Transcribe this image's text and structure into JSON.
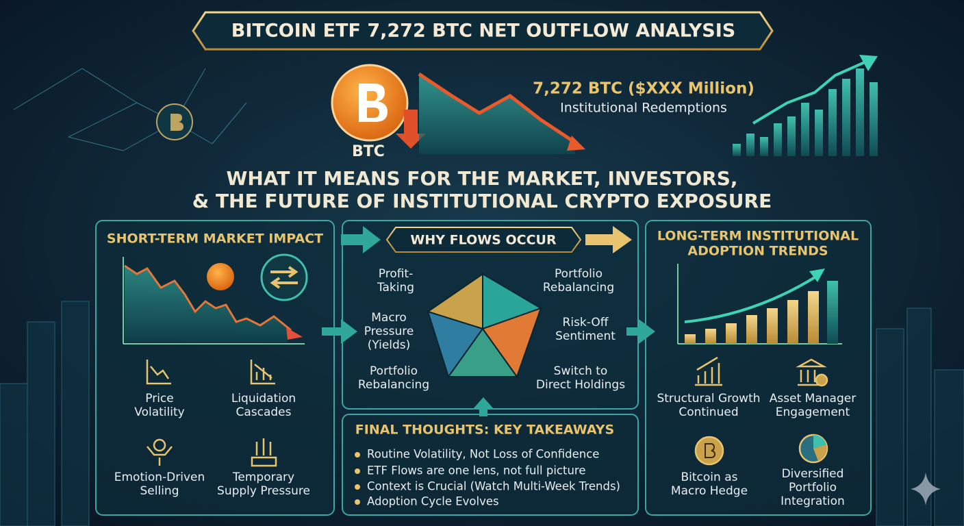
{
  "header": {
    "title": "BITCOIN ETF 7,272 BTC NET OUTFLOW ANALYSIS"
  },
  "hero": {
    "coin_label": "BTC",
    "amount": "7,272 BTC ($XXX Million)",
    "caption": "Institutional Redemptions",
    "subtitle_lines": [
      "WHAT IT MEANS FOR THE MARKET, INVESTORS,",
      "& THE FUTURE OF INSTITUTIONAL CRYPTO EXPOSURE"
    ]
  },
  "short_term": {
    "title": "SHORT-TERM MARKET IMPACT",
    "items": [
      [
        "Price",
        "Volatility"
      ],
      [
        "Liquidation",
        "Cascades"
      ],
      [
        "Emotion-Driven",
        "Selling"
      ],
      [
        "Temporary",
        "Supply Pressure"
      ]
    ]
  },
  "why_flows": {
    "title": "WHY FLOWS OCCUR",
    "items": [
      [
        "Profit-",
        "Taking"
      ],
      [
        "Portfolio",
        "Rebalancing"
      ],
      [
        "Macro",
        "Pressure",
        "(Yields)"
      ],
      [
        "Risk-Off",
        "Sentiment"
      ],
      [
        "Portfolio",
        "Rebalancing"
      ],
      [
        "Switch to",
        "Direct Holdings"
      ]
    ]
  },
  "final_thoughts": {
    "title": "FINAL THOUGHTS: KEY TAKEAWAYS",
    "bullets": [
      "Routine Volatility, Not Loss of Confidence",
      "ETF Flows are one lens, not full picture",
      "Context is Crucial (Watch Multi-Week Trends)",
      "Adoption Cycle Evolves"
    ]
  },
  "long_term": {
    "title_lines": [
      "LONG-TERM INSTITUTIONAL",
      "ADOPTION TRENDS"
    ],
    "items": [
      [
        "Structural Growth",
        "Continued"
      ],
      [
        "Asset Manager",
        "Engagement"
      ],
      [
        "Bitcoin as",
        "Macro Hedge"
      ],
      [
        "Diversified",
        "Portfolio",
        "Integration"
      ]
    ]
  }
}
